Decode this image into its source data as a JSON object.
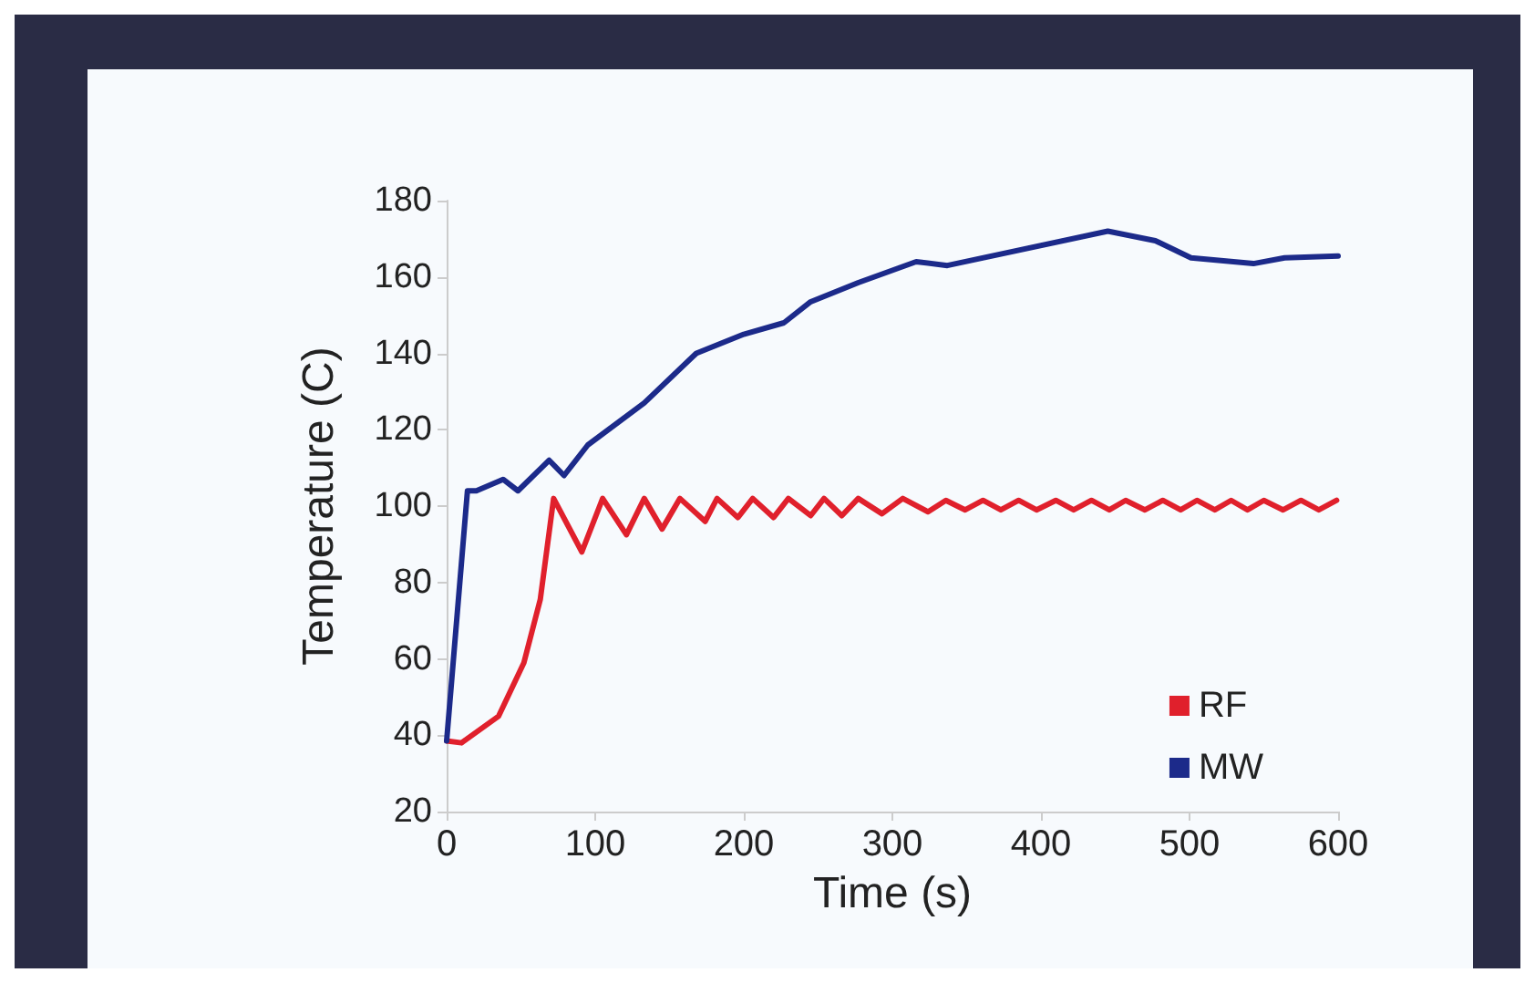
{
  "chart_data": {
    "type": "line",
    "xlabel": "Time (s)",
    "ylabel": "Temperature (C)",
    "xlim": [
      0,
      600
    ],
    "xticks": [
      0,
      100,
      200,
      300,
      400,
      500,
      600
    ],
    "ylim": [
      20,
      180
    ],
    "yticks": [
      20,
      40,
      60,
      80,
      100,
      120,
      140,
      160,
      180
    ],
    "grid": false,
    "legend": "bottom right",
    "marker": "none",
    "line_style": "solid",
    "series": [
      {
        "name": "RF",
        "color": "#e0202c",
        "x": [
          0,
          10,
          35,
          52,
          63,
          72,
          91,
          105,
          121,
          133,
          145,
          157,
          174,
          182,
          196,
          206,
          220,
          230,
          245,
          254,
          266,
          277,
          293,
          307,
          324,
          336,
          349,
          361,
          373,
          385,
          397,
          410,
          422,
          434,
          446,
          457,
          470,
          482,
          494,
          505,
          517,
          528,
          539,
          550,
          563,
          575,
          587,
          599
        ],
        "values": [
          38.5,
          38,
          45,
          59,
          75.5,
          102,
          88,
          102,
          92.5,
          102,
          94,
          102,
          96,
          102,
          97,
          102,
          97,
          102,
          97.5,
          102,
          97.5,
          102,
          98,
          102,
          98.5,
          101.5,
          99,
          101.5,
          99,
          101.5,
          99,
          101.5,
          99,
          101.5,
          99,
          101.5,
          99,
          101.5,
          99,
          101.5,
          99,
          101.5,
          99,
          101.5,
          99,
          101.5,
          99,
          101.5
        ]
      },
      {
        "name": "MW",
        "color": "#1c2a8a",
        "x": [
          0,
          14,
          20,
          38,
          48,
          69,
          79,
          95,
          133,
          168,
          200,
          227,
          245,
          277,
          316,
          337,
          445,
          477,
          501,
          543,
          564,
          600
        ],
        "values": [
          38.5,
          104,
          104,
          107,
          104,
          112,
          108,
          116,
          127,
          140,
          145,
          148,
          153.5,
          158.5,
          164,
          163,
          172,
          169.5,
          165,
          163.5,
          165,
          165.5
        ]
      }
    ]
  }
}
